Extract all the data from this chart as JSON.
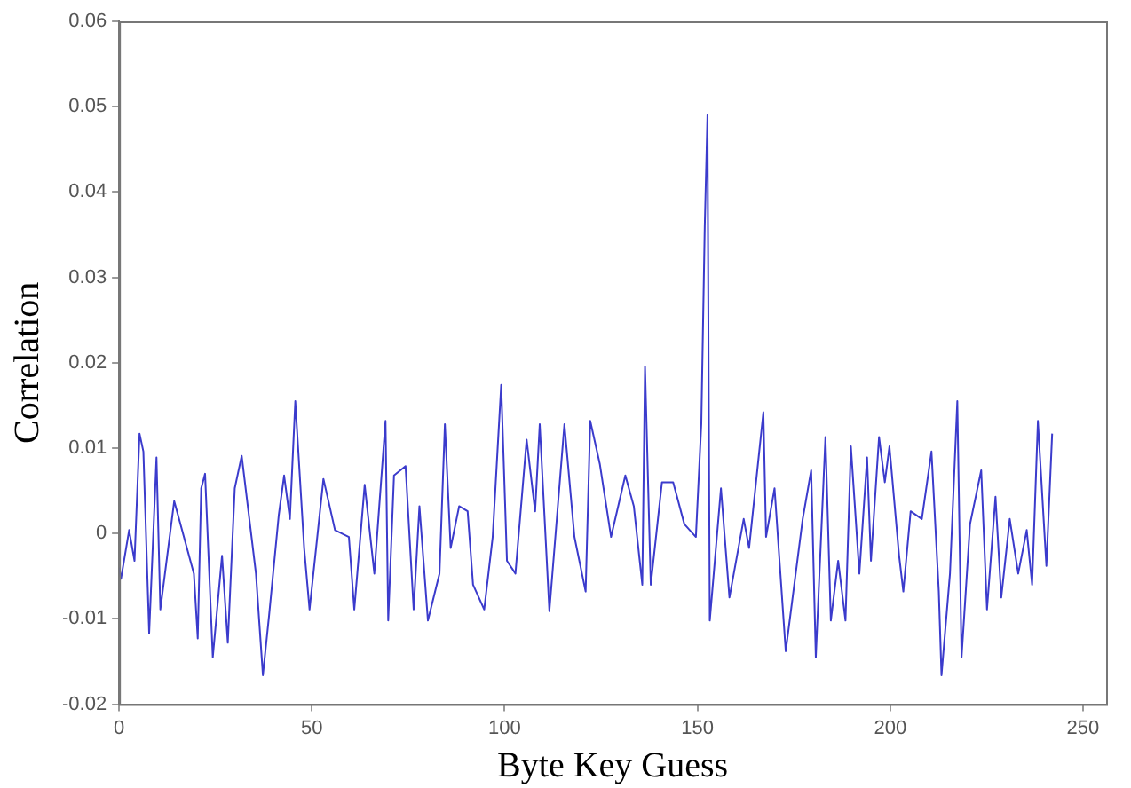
{
  "chart_data": {
    "type": "line",
    "xlabel": "Byte Key Guess",
    "ylabel": "Correlation",
    "x": [
      0,
      0.5,
      2.6,
      4,
      5.3,
      6.3,
      7.8,
      9.7,
      10.7,
      14.3,
      19.4,
      20.4,
      21.3,
      22.3,
      24.3,
      26.7,
      28.2,
      30,
      31.8,
      35.5,
      37.3,
      38.9,
      41.4,
      42.8,
      44.3,
      45.7,
      48,
      49.4,
      53,
      56,
      59.6,
      61,
      63.7,
      66.2,
      69.1,
      69.8,
      71.3,
      74.3,
      76.4,
      77.9,
      80.1,
      83.1,
      84.5,
      86,
      88.2,
      90.4,
      91.8,
      94.7,
      96.9,
      99.1,
      100.6,
      102.8,
      105.7,
      107.9,
      109.1,
      111.6,
      115.5,
      118.1,
      121,
      122.2,
      124.7,
      127.6,
      131.3,
      133.5,
      135.7,
      136.4,
      137.9,
      140.8,
      143.7,
      146.6,
      149.6,
      151,
      151.9,
      152.6,
      153.2,
      156.1,
      158.3,
      162,
      163.4,
      167.1,
      167.8,
      170,
      172.9,
      177.3,
      179.5,
      180.7,
      183.2,
      184.6,
      186.5,
      188.4,
      189.8,
      192,
      194,
      195,
      197.1,
      198.6,
      199.8,
      202.3,
      203.4,
      205.3,
      208.2,
      210.7,
      212.6,
      213.3,
      215.5,
      217.4,
      218.5,
      220.7,
      223.6,
      225.1,
      227.3,
      228.8,
      231,
      233.2,
      235.4,
      236.8,
      238.3,
      240.5,
      242
    ],
    "values": [
      -0.004,
      -0.0053,
      0.0004,
      -0.0032,
      0.0117,
      0.0096,
      -0.0117,
      0.0089,
      -0.0089,
      0.0038,
      -0.0047,
      -0.0123,
      0.0053,
      0.007,
      -0.0145,
      -0.0026,
      -0.0128,
      0.0053,
      0.0091,
      -0.0047,
      -0.0166,
      -0.0096,
      0.0021,
      0.0068,
      0.0017,
      0.0155,
      -0.0017,
      -0.0089,
      0.0064,
      0.0004,
      -0.0004,
      -0.0089,
      0.0057,
      -0.0047,
      0.0132,
      -0.0102,
      0.0068,
      0.0079,
      -0.0089,
      0.0032,
      -0.0102,
      -0.0047,
      0.0128,
      -0.0017,
      0.0032,
      0.0026,
      -0.006,
      -0.0089,
      -0.0004,
      0.0174,
      -0.0032,
      -0.0047,
      0.011,
      0.0026,
      0.0128,
      -0.0091,
      0.0128,
      -0.0004,
      -0.0068,
      0.0132,
      0.0081,
      -0.0004,
      0.0068,
      0.0032,
      -0.006,
      0.0196,
      -0.006,
      0.006,
      0.006,
      0.0011,
      -0.0004,
      0.0128,
      0.036,
      0.049,
      -0.0102,
      0.0053,
      -0.0075,
      0.0017,
      -0.0017,
      0.0142,
      -0.0004,
      0.0053,
      -0.0138,
      0.0017,
      0.0074,
      -0.0145,
      0.0113,
      -0.0102,
      -0.0032,
      -0.0102,
      0.0102,
      -0.0047,
      0.0089,
      -0.0032,
      0.0113,
      0.006,
      0.0102,
      -0.0026,
      -0.0068,
      0.0026,
      0.0017,
      0.0096,
      -0.0068,
      -0.0166,
      -0.0047,
      0.0155,
      -0.0145,
      0.0011,
      0.0074,
      -0.0089,
      0.0043,
      -0.0075,
      0.0017,
      -0.0047,
      0.0004,
      -0.006,
      0.0132,
      -0.0038,
      0.0117
    ],
    "color": "#3b3bcc",
    "xlim": [
      0,
      256
    ],
    "xticks": [
      0,
      50,
      100,
      150,
      200,
      250
    ],
    "ylim": [
      -0.02,
      0.06
    ],
    "yticks": [
      -0.02,
      -0.01,
      0,
      0.01,
      0.02,
      0.03,
      0.04,
      0.05,
      0.06
    ],
    "grid": false,
    "legend": false,
    "marker": "none",
    "line_style": "solid"
  }
}
